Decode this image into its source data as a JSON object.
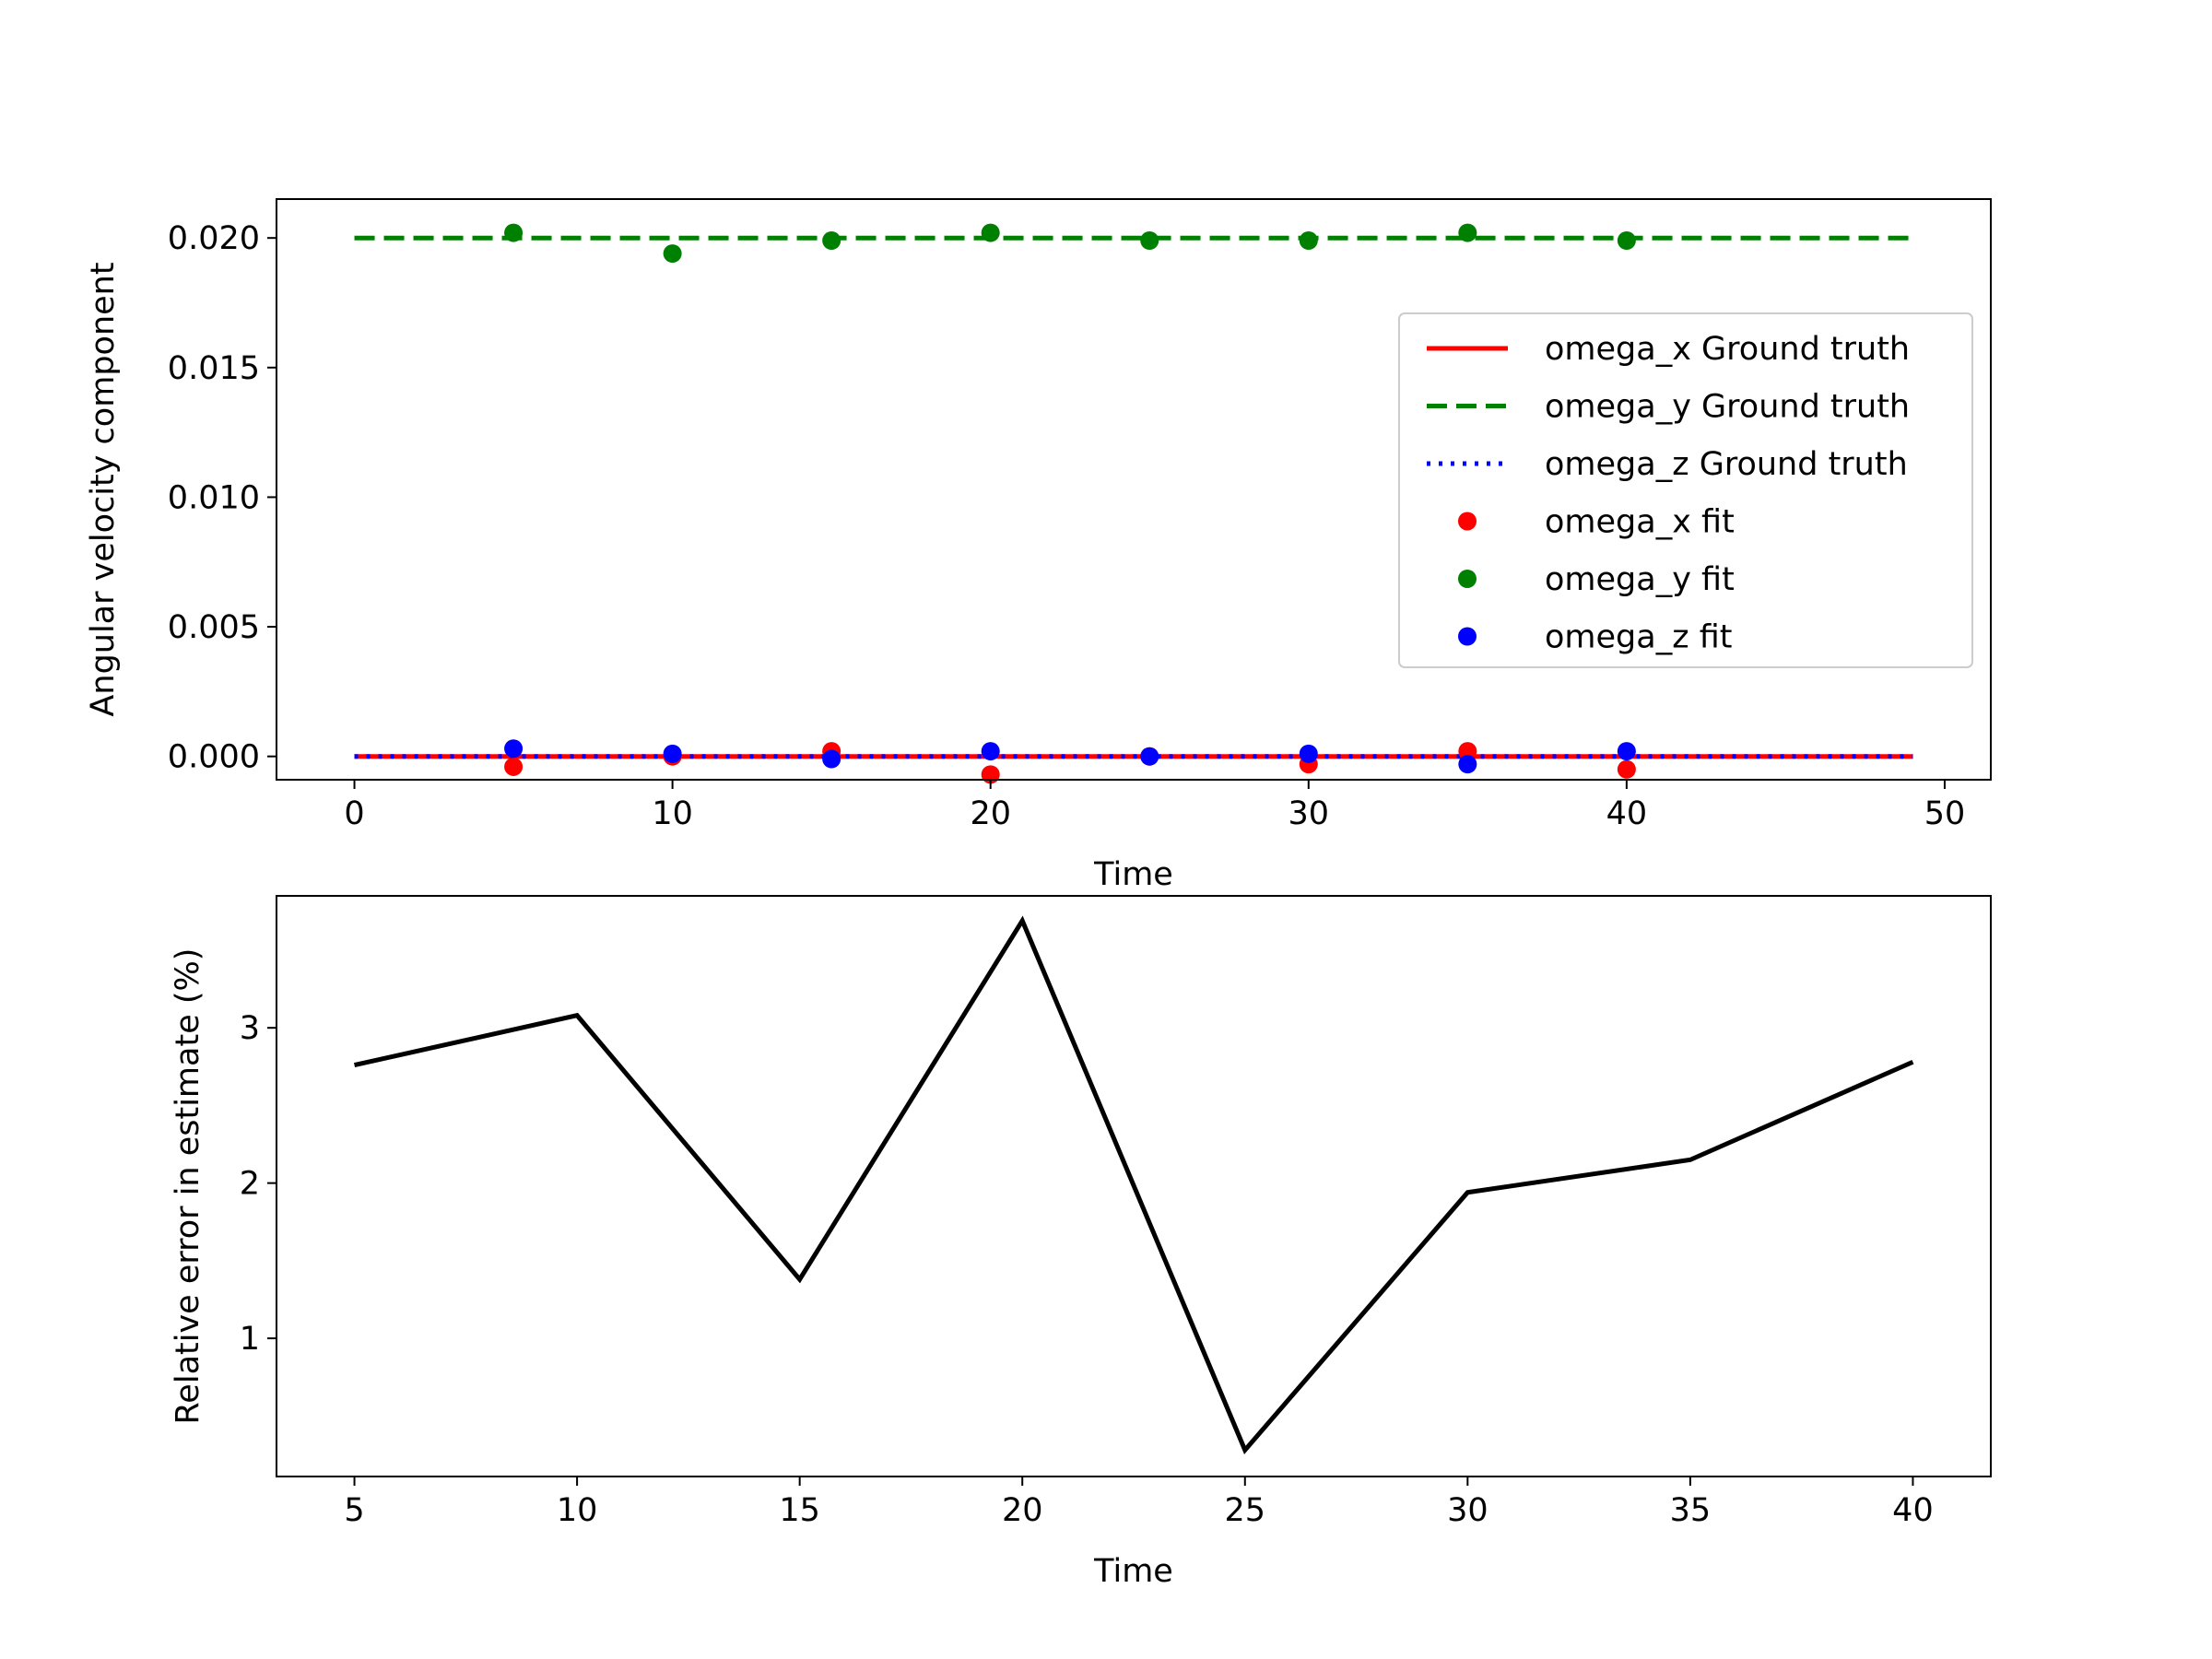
{
  "chart_data": [
    {
      "type": "line",
      "xlabel": "Time",
      "ylabel": "Angular velocity component",
      "xlim": [
        -2.45,
        51.45
      ],
      "ylim": [
        -0.0009,
        0.0215
      ],
      "xticks": [
        0,
        10,
        20,
        30,
        40,
        50
      ],
      "xtick_labels": [
        "0",
        "10",
        "20",
        "30",
        "40",
        "50"
      ],
      "yticks": [
        0.0,
        0.005,
        0.01,
        0.015,
        0.02
      ],
      "ytick_labels": [
        "0.000",
        "0.005",
        "0.010",
        "0.015",
        "0.020"
      ],
      "grid": false,
      "legend_position": "right",
      "series": [
        {
          "name": "omega_x Ground truth",
          "kind": "line",
          "style": "solid",
          "color": "#ff0000",
          "x": [
            0,
            49
          ],
          "y": [
            0.0,
            0.0
          ]
        },
        {
          "name": "omega_y Ground truth",
          "kind": "line",
          "style": "dashed",
          "color": "#008000",
          "x": [
            0,
            49
          ],
          "y": [
            0.02,
            0.02
          ]
        },
        {
          "name": "omega_z Ground truth",
          "kind": "line",
          "style": "dotted",
          "color": "#0000ff",
          "x": [
            0,
            49
          ],
          "y": [
            0.0,
            0.0
          ]
        },
        {
          "name": "omega_x fit",
          "kind": "scatter",
          "color": "#ff0000",
          "x": [
            5,
            10,
            15,
            20,
            25,
            30,
            35,
            40
          ],
          "y": [
            -0.0004,
            0.0,
            0.0002,
            -0.0007,
            0.0,
            -0.0003,
            0.0002,
            -0.0005
          ]
        },
        {
          "name": "omega_y fit",
          "kind": "scatter",
          "color": "#008000",
          "x": [
            5,
            10,
            15,
            20,
            25,
            30,
            35,
            40
          ],
          "y": [
            0.0202,
            0.0194,
            0.0199,
            0.0202,
            0.0199,
            0.0199,
            0.0202,
            0.0199
          ]
        },
        {
          "name": "omega_z fit",
          "kind": "scatter",
          "color": "#0000ff",
          "x": [
            5,
            10,
            15,
            20,
            25,
            30,
            35,
            40
          ],
          "y": [
            0.0003,
            0.0001,
            -0.0001,
            0.0002,
            0.0,
            0.0001,
            -0.0003,
            0.0002
          ]
        }
      ]
    },
    {
      "type": "line",
      "xlabel": "Time",
      "ylabel": "Relative error in estimate (%)",
      "xlim": [
        3.25,
        41.75
      ],
      "ylim": [
        0.11,
        3.85
      ],
      "xticks": [
        5,
        10,
        15,
        20,
        25,
        30,
        35,
        40
      ],
      "xtick_labels": [
        "5",
        "10",
        "15",
        "20",
        "25",
        "30",
        "35",
        "40"
      ],
      "yticks": [
        1,
        2,
        3
      ],
      "ytick_labels": [
        "1",
        "2",
        "3"
      ],
      "grid": false,
      "series": [
        {
          "kind": "line",
          "style": "solid",
          "color": "#000000",
          "x": [
            5,
            10,
            15,
            20,
            25,
            30,
            35,
            40
          ],
          "y": [
            2.76,
            3.08,
            1.38,
            3.69,
            0.28,
            1.94,
            2.15,
            2.78
          ]
        }
      ]
    }
  ]
}
